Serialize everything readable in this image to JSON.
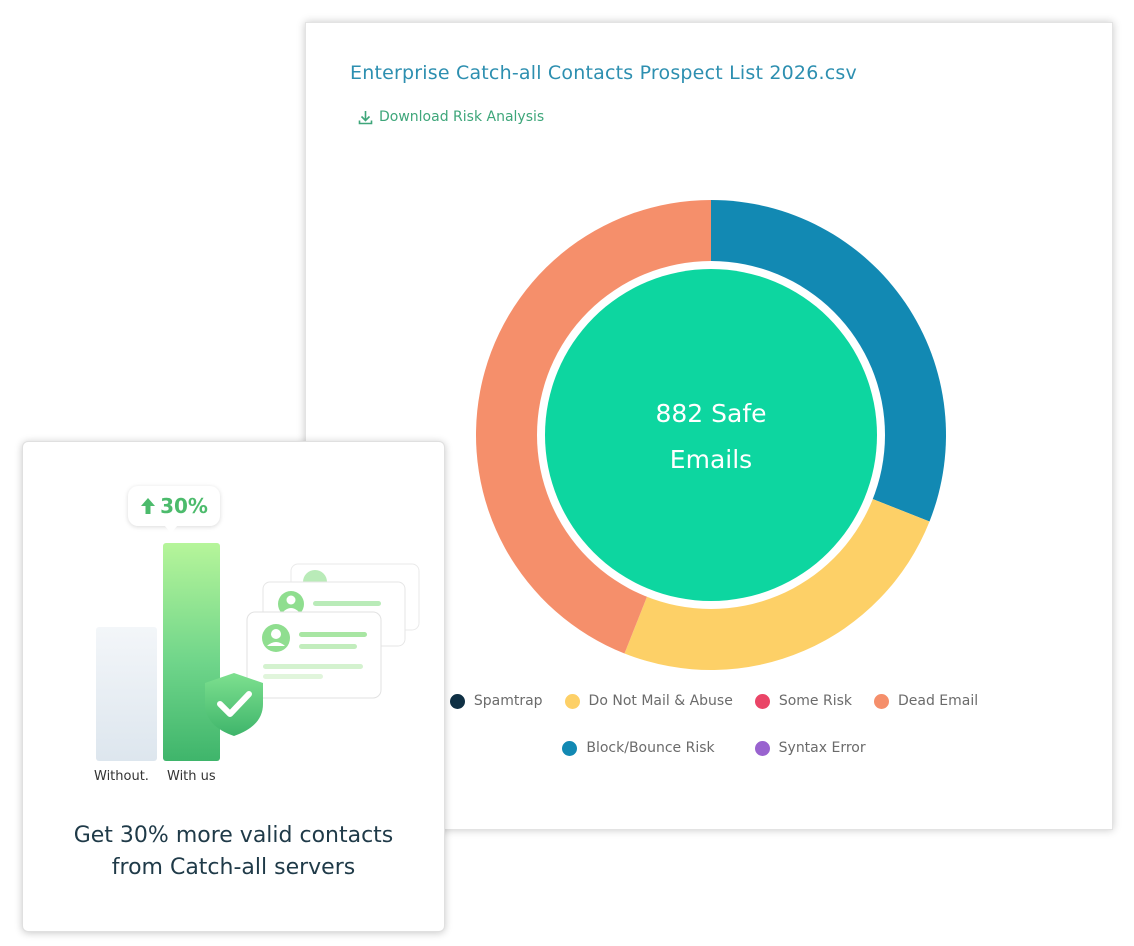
{
  "report": {
    "file_title": "Enterprise Catch-all Contacts Prospect List 2026.csv",
    "download_label": "Download Risk Analysis",
    "download_icon": "download-icon"
  },
  "chart_data": {
    "type": "pie",
    "variant": "donut",
    "center_label_lines": [
      "882 Safe",
      "Emails"
    ],
    "slices": [
      {
        "label": "Block/Bounce Risk",
        "fraction": 0.31,
        "color": "#1289b3"
      },
      {
        "label": "Do Not Mail & Abuse",
        "fraction": 0.25,
        "color": "#fdd067"
      },
      {
        "label": "Dead Email",
        "fraction": 0.44,
        "color": "#f58f6b"
      }
    ],
    "inner": {
      "color": "#0dd6a0"
    },
    "legend": [
      {
        "label": "Spamtrap",
        "color": "#0f3044"
      },
      {
        "label": "Do Not Mail & Abuse",
        "color": "#fdd067"
      },
      {
        "label": "Some Risk",
        "color": "#ea4567"
      },
      {
        "label": "Dead Email",
        "color": "#f58f6b"
      },
      {
        "label": "Block/Bounce Risk",
        "color": "#1289b3"
      },
      {
        "label": "Syntax Error",
        "color": "#9963cf"
      }
    ],
    "legend_placement": "bottom"
  },
  "promo": {
    "badge_text": "30%",
    "badge_icon": "arrow-up-icon",
    "bar_without_label": "Without.",
    "bar_with_label": "With us",
    "shield_icon": "shield-check-icon",
    "headline_line1": "Get 30% more valid contacts",
    "headline_line2": "from Catch-all servers",
    "accent_color": "#4cbb6c"
  }
}
